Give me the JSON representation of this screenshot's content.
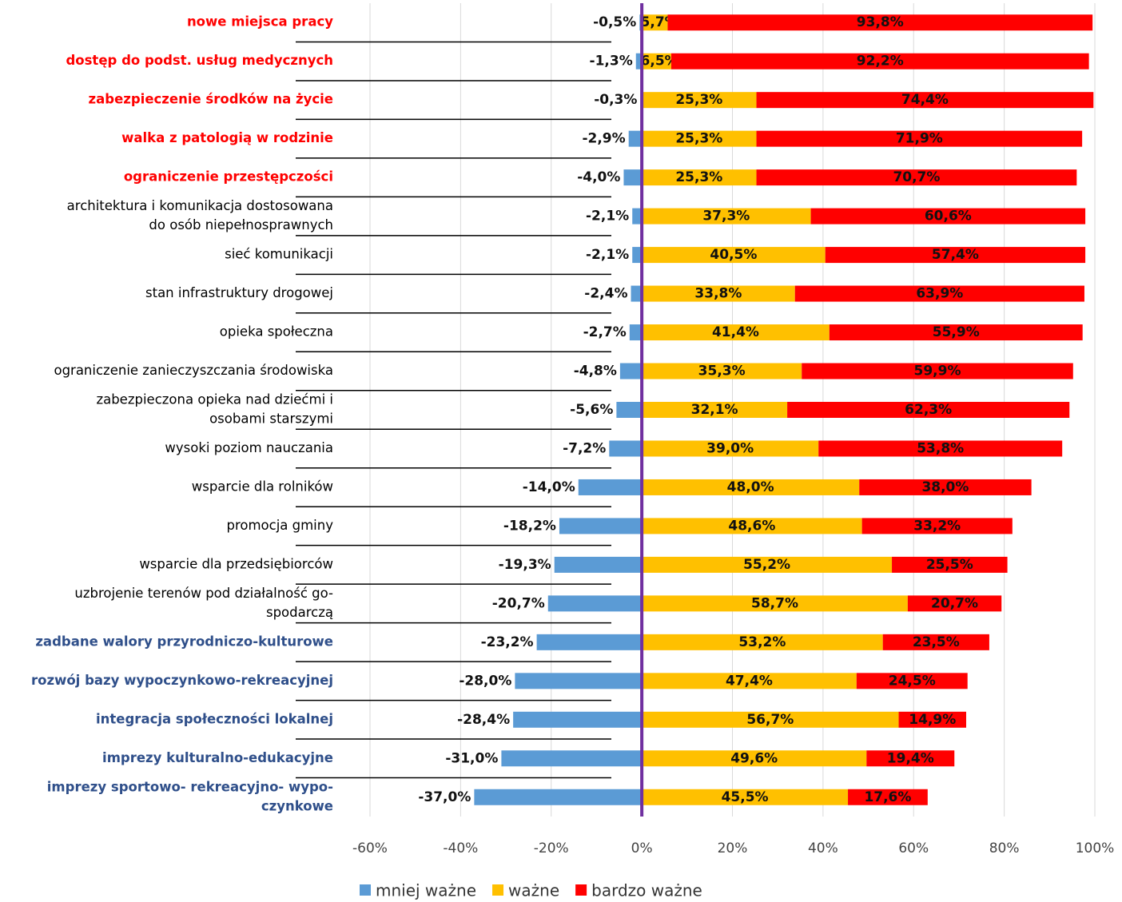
{
  "chart_data": {
    "type": "diverging-stacked-bar",
    "categories": [
      [
        "nowe miejsca pracy"
      ],
      [
        "dostęp do podst. usług medycznych"
      ],
      [
        "zabezpieczenie środków na  życie"
      ],
      [
        "walka z patologią w rodzinie"
      ],
      [
        "ograniczenie przestępczości"
      ],
      [
        "architektura i komunikacja dostosowana",
        "do  osób niepełnosprawnych"
      ],
      [
        "sieć komunikacji"
      ],
      [
        "stan infrastruktury drogowej"
      ],
      [
        "opieka społeczna"
      ],
      [
        "ograniczenie zanieczyszczania środowiska"
      ],
      [
        "zabezpieczona opieka nad dziećmi i",
        "osobami starszymi"
      ],
      [
        "wysoki poziom nauczania"
      ],
      [
        "wsparcie dla rolników"
      ],
      [
        "promocja gminy"
      ],
      [
        "wsparcie dla przedsiębiorców"
      ],
      [
        "uzbrojenie terenów pod działalność go-",
        "spodarczą"
      ],
      [
        "zadbane walory przyrodniczo-kulturowe"
      ],
      [
        "rozwój bazy wypoczynkowo-rekreacyjnej"
      ],
      [
        "integracja społeczności lokalnej"
      ],
      [
        "imprezy kulturalno-edukacyjne"
      ],
      [
        "imprezy sportowo- rekreacyjno- wypo-",
        "czynkowe"
      ]
    ],
    "category_colors": [
      "#ff0000",
      "#ff0000",
      "#ff0000",
      "#ff0000",
      "#ff0000",
      "#000000",
      "#000000",
      "#000000",
      "#000000",
      "#000000",
      "#000000",
      "#000000",
      "#000000",
      "#000000",
      "#000000",
      "#000000",
      "#2f4f8a",
      "#2f4f8a",
      "#2f4f8a",
      "#2f4f8a",
      "#2f4f8a"
    ],
    "series": [
      {
        "name": "mniej ważne",
        "color": "#5b9bd5",
        "values": [
          -0.5,
          -1.3,
          -0.3,
          -2.9,
          -4.0,
          -2.1,
          -2.1,
          -2.4,
          -2.7,
          -4.8,
          -5.6,
          -7.2,
          -14.0,
          -18.2,
          -19.3,
          -20.7,
          -23.2,
          -28.0,
          -28.4,
          -31.0,
          -37.0
        ],
        "value_labels": [
          "-0,5%",
          "-1,3%",
          "-0,3%",
          "-2,9%",
          "-4,0%",
          "-2,1%",
          "-2,1%",
          "-2,4%",
          "-2,7%",
          "-4,8%",
          "-5,6%",
          "-7,2%",
          "-14,0%",
          "-18,2%",
          "-19,3%",
          "-20,7%",
          "-23,2%",
          "-28,0%",
          "-28,4%",
          "-31,0%",
          "-37,0%"
        ]
      },
      {
        "name": "ważne",
        "color": "#ffc000",
        "values": [
          5.7,
          6.5,
          25.3,
          25.3,
          25.3,
          37.3,
          40.5,
          33.8,
          41.4,
          35.3,
          32.1,
          39.0,
          48.0,
          48.6,
          55.2,
          58.7,
          53.2,
          47.4,
          56.7,
          49.6,
          45.5
        ],
        "value_labels": [
          "5,7%",
          "6,5%",
          "25,3%",
          "25,3%",
          "25,3%",
          "37,3%",
          "40,5%",
          "33,8%",
          "41,4%",
          "35,3%",
          "32,1%",
          "39,0%",
          "48,0%",
          "48,6%",
          "55,2%",
          "58,7%",
          "53,2%",
          "47,4%",
          "56,7%",
          "49,6%",
          "45,5%"
        ]
      },
      {
        "name": "bardzo ważne",
        "color": "#ff0000",
        "values": [
          93.8,
          92.2,
          74.4,
          71.9,
          70.7,
          60.6,
          57.4,
          63.9,
          55.9,
          59.9,
          62.3,
          53.8,
          38.0,
          33.2,
          25.5,
          20.7,
          23.5,
          24.5,
          14.9,
          19.4,
          17.6
        ],
        "value_labels": [
          "93,8%",
          "92,2%",
          "74,4%",
          "71,9%",
          "70,7%",
          "60,6%",
          "57,4%",
          "63,9%",
          "55,9%",
          "59,9%",
          "62,3%",
          "53,8%",
          "38,0%",
          "33,2%",
          "25,5%",
          "20,7%",
          "23,5%",
          "24,5%",
          "14,9%",
          "19,4%",
          "17,6%"
        ]
      }
    ],
    "xlim": [
      -60,
      100
    ],
    "xticks": [
      {
        "value": -60,
        "label": "-60%"
      },
      {
        "value": -40,
        "label": "-40%"
      },
      {
        "value": -20,
        "label": "-20%"
      },
      {
        "value": 0,
        "label": "0%"
      },
      {
        "value": 20,
        "label": "20%"
      },
      {
        "value": 40,
        "label": "40%"
      },
      {
        "value": 60,
        "label": "60%"
      },
      {
        "value": 80,
        "label": "80%"
      },
      {
        "value": 100,
        "label": "100%"
      }
    ],
    "grid": true,
    "legend": "bottom",
    "zero_line_color": "#7030a0"
  }
}
